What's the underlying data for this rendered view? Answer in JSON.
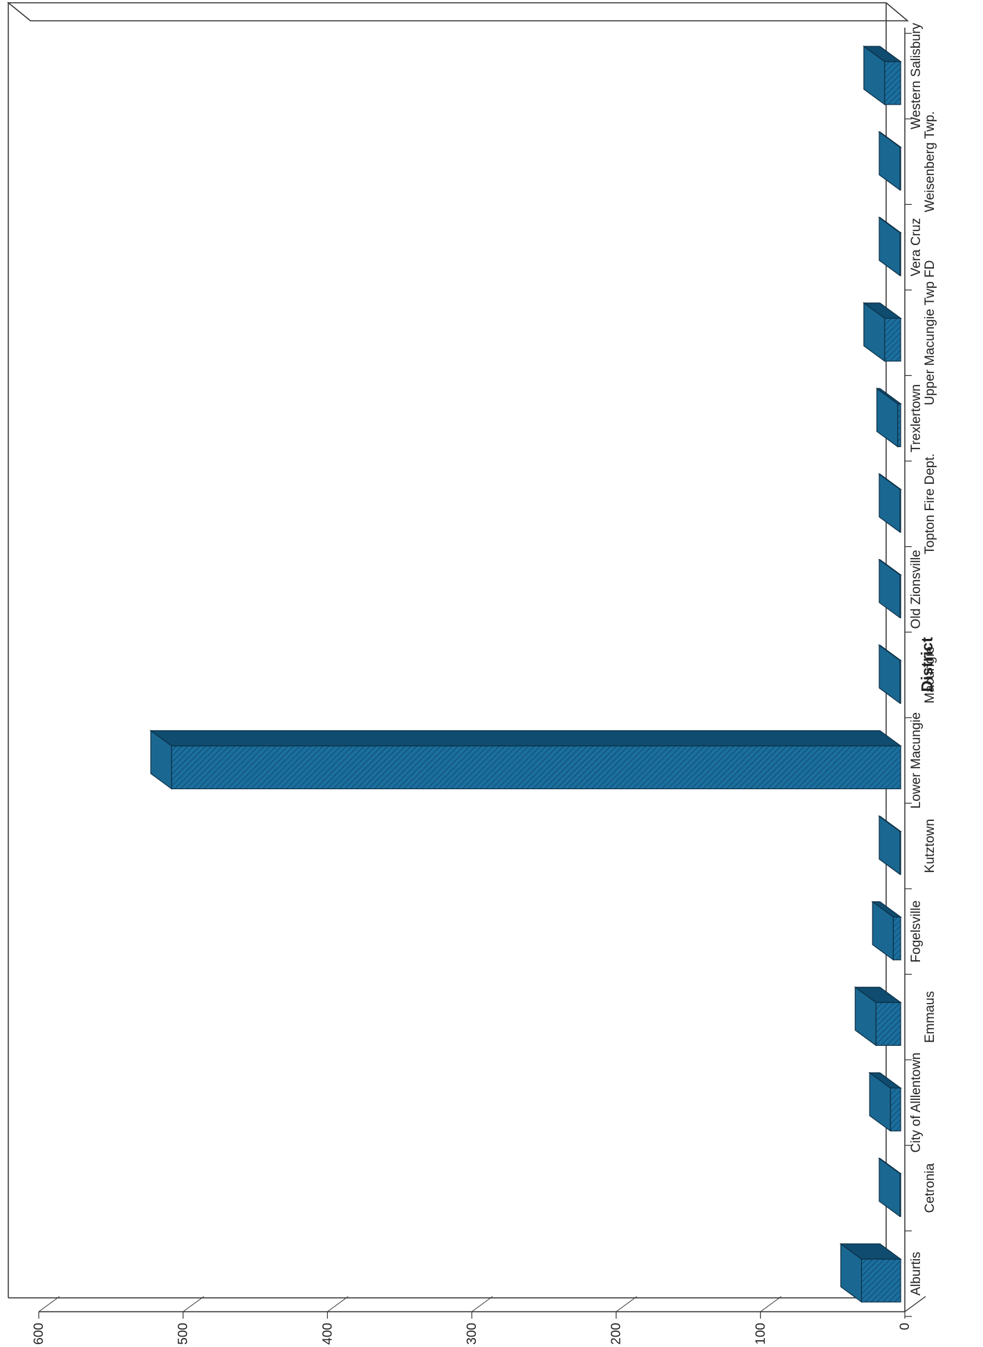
{
  "chart_data": {
    "type": "bar",
    "title": "",
    "xlabel": "District",
    "ylabel": "",
    "ylim": [
      0,
      600
    ],
    "yticks": [
      "0",
      "100",
      "200",
      "300",
      "400",
      "500",
      "600"
    ],
    "categories": [
      "Alburtis",
      "Cetronia",
      "City of Alllentown",
      "Emmaus",
      "Fogelsville",
      "Kutztown",
      "Lower Macungie",
      "Macungie",
      "Old Zionsville",
      "Topton Fire Dept.",
      "Trexlertown",
      "Upper Macungie Twp FD",
      "Vera Cruz",
      "Weisenberg Twp.",
      "Western Salisbury"
    ],
    "values": [
      30,
      0,
      10,
      20,
      8,
      0,
      508,
      2,
      1,
      2,
      5,
      14,
      3,
      2,
      14
    ],
    "grid": false,
    "orientation": "rotated-90-clockwise",
    "colors": {
      "bar_front": "#1b6f9e",
      "bar_top": "#0f4c6f",
      "bar_side": "#1a6892",
      "hatch": "#0b3a58"
    }
  }
}
